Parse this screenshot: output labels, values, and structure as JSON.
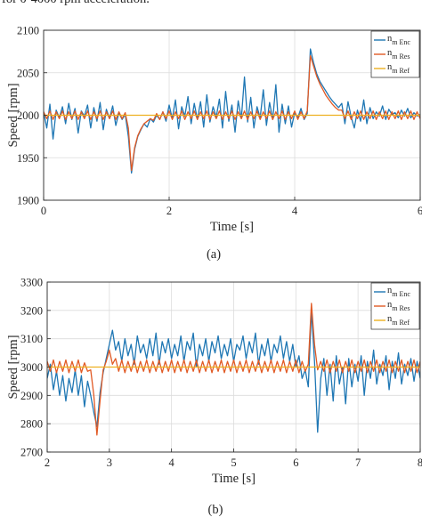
{
  "header_text": "for 0-4000 rpm acceleration.",
  "colors": {
    "enc": "#1f77b4",
    "res": "#e15a25",
    "ref": "#edb120",
    "grid": "#dcdcdc",
    "axis": "#262626"
  },
  "chart_data": [
    {
      "type": "line",
      "caption": "(a)",
      "xlabel": "Time [s]",
      "ylabel": "Speed [rpm]",
      "xlim": [
        0,
        6
      ],
      "ylim": [
        1900,
        2100
      ],
      "xticks": [
        0,
        2,
        4,
        6
      ],
      "yticks": [
        1900,
        1950,
        2000,
        2050,
        2100
      ],
      "grid": true,
      "legend_position": "top-right",
      "legend": [
        {
          "key": "enc",
          "main": "n",
          "sub": "m Enc"
        },
        {
          "key": "res",
          "main": "n",
          "sub": "m Res"
        },
        {
          "key": "ref",
          "main": "n",
          "sub": "m Ref"
        }
      ],
      "series": [
        {
          "key": "enc",
          "x": [
            0,
            0.05,
            0.1,
            0.15,
            0.2,
            0.25,
            0.3,
            0.35,
            0.4,
            0.45,
            0.5,
            0.55,
            0.6,
            0.65,
            0.7,
            0.75,
            0.8,
            0.85,
            0.9,
            0.95,
            1.0,
            1.05,
            1.1,
            1.15,
            1.2,
            1.25,
            1.3,
            1.35,
            1.4,
            1.45,
            1.5,
            1.55,
            1.6,
            1.65,
            1.7,
            1.75,
            1.8,
            1.85,
            1.9,
            1.95,
            2.0,
            2.05,
            2.1,
            2.15,
            2.2,
            2.25,
            2.3,
            2.35,
            2.4,
            2.45,
            2.5,
            2.55,
            2.6,
            2.65,
            2.7,
            2.75,
            2.8,
            2.85,
            2.9,
            2.95,
            3.0,
            3.05,
            3.1,
            3.15,
            3.2,
            3.25,
            3.3,
            3.35,
            3.4,
            3.45,
            3.5,
            3.55,
            3.6,
            3.65,
            3.7,
            3.75,
            3.8,
            3.85,
            3.9,
            3.95,
            4.0,
            4.05,
            4.1,
            4.15,
            4.2,
            4.25,
            4.3,
            4.35,
            4.4,
            4.45,
            4.5,
            4.55,
            4.6,
            4.65,
            4.7,
            4.75,
            4.8,
            4.85,
            4.9,
            4.95,
            5.0,
            5.05,
            5.1,
            5.15,
            5.2,
            5.25,
            5.3,
            5.35,
            5.4,
            5.45,
            5.5,
            5.55,
            5.6,
            5.65,
            5.7,
            5.75,
            5.8,
            5.85,
            5.9,
            5.95,
            6.0
          ],
          "y": [
            2004,
            1985,
            2013,
            1972,
            2006,
            1997,
            2010,
            1990,
            2014,
            1995,
            2008,
            1979,
            2005,
            1999,
            2012,
            1985,
            2009,
            1993,
            2015,
            1983,
            2007,
            1996,
            2011,
            1988,
            2003,
            1995,
            2001,
            1975,
            1932,
            1960,
            1975,
            1983,
            1990,
            1986,
            1996,
            1992,
            2000,
            1995,
            2004,
            1993,
            2012,
            1996,
            2018,
            1984,
            2010,
            1999,
            2022,
            1990,
            2014,
            1995,
            2016,
            1986,
            2024,
            1992,
            2010,
            1998,
            2019,
            1985,
            2028,
            1993,
            2012,
            1980,
            2017,
            1996,
            2045,
            1992,
            2021,
            1985,
            2010,
            1997,
            2030,
            1988,
            2015,
            1995,
            2036,
            1980,
            2013,
            1990,
            2011,
            1986,
            2003,
            1997,
            2008,
            1995,
            2002,
            2078,
            2062,
            2049,
            2040,
            2034,
            2028,
            2022,
            2017,
            2013,
            2009,
            2014,
            1990,
            2016,
            1998,
            1985,
            2006,
            1993,
            2018,
            1990,
            2009,
            1996,
            2004,
            1999,
            2011,
            1995,
            2007,
            2001,
            2003,
            1997,
            2006,
            1999,
            2008,
            1997,
            2003,
            1999,
            2001
          ]
        },
        {
          "key": "res",
          "x": [
            0,
            0.05,
            0.1,
            0.15,
            0.2,
            0.25,
            0.3,
            0.35,
            0.4,
            0.45,
            0.5,
            0.55,
            0.6,
            0.65,
            0.7,
            0.75,
            0.8,
            0.85,
            0.9,
            0.95,
            1.0,
            1.05,
            1.1,
            1.15,
            1.2,
            1.25,
            1.3,
            1.35,
            1.4,
            1.45,
            1.5,
            1.55,
            1.6,
            1.65,
            1.7,
            1.75,
            1.8,
            1.85,
            1.9,
            1.95,
            2.0,
            2.05,
            2.1,
            2.15,
            2.2,
            2.25,
            2.3,
            2.35,
            2.4,
            2.45,
            2.5,
            2.55,
            2.6,
            2.65,
            2.7,
            2.75,
            2.8,
            2.85,
            2.9,
            2.95,
            3.0,
            3.05,
            3.1,
            3.15,
            3.2,
            3.25,
            3.3,
            3.35,
            3.4,
            3.45,
            3.5,
            3.55,
            3.6,
            3.65,
            3.7,
            3.75,
            3.8,
            3.85,
            3.9,
            3.95,
            4.0,
            4.05,
            4.1,
            4.15,
            4.2,
            4.25,
            4.3,
            4.35,
            4.4,
            4.45,
            4.5,
            4.55,
            4.6,
            4.65,
            4.7,
            4.75,
            4.8,
            4.85,
            4.9,
            4.95,
            5.0,
            5.05,
            5.1,
            5.15,
            5.2,
            5.25,
            5.3,
            5.35,
            5.4,
            5.45,
            5.5,
            5.55,
            5.6,
            5.65,
            5.7,
            5.75,
            5.8,
            5.85,
            5.9,
            5.95,
            6.0
          ],
          "y": [
            2004,
            1996,
            2005,
            1995,
            2004,
            1996,
            2005,
            1995,
            2004,
            1996,
            2005,
            1995,
            2004,
            1996,
            2005,
            1995,
            2004,
            1996,
            2005,
            1995,
            2004,
            1996,
            2005,
            1995,
            2004,
            1996,
            2003,
            1985,
            1935,
            1962,
            1976,
            1984,
            1990,
            1993,
            1996,
            1994,
            2002,
            1995,
            2004,
            1996,
            2005,
            1995,
            2004,
            1996,
            2005,
            1995,
            2004,
            1996,
            2005,
            1995,
            2004,
            1996,
            2005,
            1995,
            2004,
            1996,
            2005,
            1995,
            2004,
            1996,
            2005,
            1995,
            2004,
            1996,
            2005,
            1995,
            2004,
            1996,
            2005,
            1995,
            2004,
            1996,
            2005,
            1995,
            2004,
            1996,
            2005,
            1995,
            2004,
            1996,
            2005,
            1995,
            2004,
            1996,
            2005,
            2070,
            2058,
            2046,
            2037,
            2030,
            2023,
            2018,
            2013,
            2009,
            2006,
            2006,
            1996,
            2005,
            1995,
            2004,
            1996,
            2005,
            1995,
            2004,
            1996,
            2005,
            1995,
            2004,
            1996,
            2005,
            1995,
            2004,
            1996,
            2005,
            1995,
            2004,
            1996,
            2005,
            1995,
            2004,
            1996
          ]
        },
        {
          "key": "ref",
          "x": [
            0,
            6
          ],
          "y": [
            2000,
            2000
          ]
        }
      ]
    },
    {
      "type": "line",
      "caption": "(b)",
      "xlabel": "Time [s]",
      "ylabel": "Speed [rpm]",
      "xlim": [
        2,
        8
      ],
      "ylim": [
        2700,
        3300
      ],
      "xticks": [
        2,
        3,
        4,
        5,
        6,
        7,
        8
      ],
      "yticks": [
        2700,
        2800,
        2900,
        3000,
        3100,
        3200,
        3300
      ],
      "grid": true,
      "legend_position": "top-right",
      "legend": [
        {
          "key": "enc",
          "main": "n",
          "sub": "m Enc"
        },
        {
          "key": "res",
          "main": "n",
          "sub": "m Res"
        },
        {
          "key": "ref",
          "main": "n",
          "sub": "m Ref"
        }
      ],
      "series": [
        {
          "key": "enc",
          "x": [
            2.0,
            2.05,
            2.1,
            2.15,
            2.2,
            2.25,
            2.3,
            2.35,
            2.4,
            2.45,
            2.5,
            2.55,
            2.6,
            2.65,
            2.7,
            2.75,
            2.8,
            2.85,
            2.9,
            2.95,
            3.0,
            3.05,
            3.1,
            3.15,
            3.2,
            3.25,
            3.3,
            3.35,
            3.4,
            3.45,
            3.5,
            3.55,
            3.6,
            3.65,
            3.7,
            3.75,
            3.8,
            3.85,
            3.9,
            3.95,
            4.0,
            4.05,
            4.1,
            4.15,
            4.2,
            4.25,
            4.3,
            4.35,
            4.4,
            4.45,
            4.5,
            4.55,
            4.6,
            4.65,
            4.7,
            4.75,
            4.8,
            4.85,
            4.9,
            4.95,
            5.0,
            5.05,
            5.1,
            5.15,
            5.2,
            5.25,
            5.3,
            5.35,
            5.4,
            5.45,
            5.5,
            5.55,
            5.6,
            5.65,
            5.7,
            5.75,
            5.8,
            5.85,
            5.9,
            5.95,
            6.0,
            6.05,
            6.1,
            6.15,
            6.2,
            6.25,
            6.3,
            6.35,
            6.4,
            6.45,
            6.5,
            6.55,
            6.6,
            6.65,
            6.7,
            6.75,
            6.8,
            6.85,
            6.9,
            6.95,
            7.0,
            7.05,
            7.1,
            7.15,
            7.2,
            7.25,
            7.3,
            7.35,
            7.4,
            7.45,
            7.5,
            7.55,
            7.6,
            7.65,
            7.7,
            7.75,
            7.8,
            7.85,
            7.9,
            7.95,
            8.0
          ],
          "y": [
            2960,
            3010,
            2920,
            2985,
            2900,
            2970,
            2880,
            2960,
            2910,
            2990,
            2900,
            2970,
            2860,
            2950,
            2900,
            2840,
            2790,
            2910,
            2980,
            3030,
            3080,
            3130,
            3060,
            3090,
            3020,
            3100,
            3040,
            3080,
            3010,
            3110,
            3050,
            3080,
            3030,
            3100,
            3040,
            3120,
            3010,
            3090,
            3050,
            3100,
            3030,
            3080,
            3040,
            3110,
            3020,
            3090,
            3060,
            3120,
            3000,
            3080,
            3040,
            3100,
            3020,
            3090,
            3050,
            3110,
            3030,
            3080,
            3040,
            3100,
            3020,
            3080,
            3060,
            3110,
            3030,
            3090,
            3050,
            3120,
            3010,
            3080,
            3040,
            3100,
            3020,
            3080,
            3050,
            3110,
            3030,
            3090,
            3020,
            3080,
            3000,
            3040,
            2960,
            2990,
            2930,
            3200,
            3020,
            2770,
            2960,
            3030,
            2900,
            3010,
            2880,
            3040,
            2940,
            3000,
            2870,
            3030,
            2930,
            3010,
            2950,
            3040,
            2900,
            3020,
            2960,
            3060,
            2940,
            3010,
            2970,
            3040,
            2920,
            3020,
            2960,
            3050,
            2940,
            3010,
            2970,
            3030,
            2950,
            3020,
            2960
          ]
        },
        {
          "key": "res",
          "x": [
            2.0,
            2.05,
            2.1,
            2.15,
            2.2,
            2.25,
            2.3,
            2.35,
            2.4,
            2.45,
            2.5,
            2.55,
            2.6,
            2.65,
            2.7,
            2.75,
            2.8,
            2.85,
            2.9,
            2.95,
            3.0,
            3.05,
            3.1,
            3.15,
            3.2,
            3.25,
            3.3,
            3.35,
            3.4,
            3.45,
            3.5,
            3.55,
            3.6,
            3.65,
            3.7,
            3.75,
            3.8,
            3.85,
            3.9,
            3.95,
            4.0,
            4.05,
            4.1,
            4.15,
            4.2,
            4.25,
            4.3,
            4.35,
            4.4,
            4.45,
            4.5,
            4.55,
            4.6,
            4.65,
            4.7,
            4.75,
            4.8,
            4.85,
            4.9,
            4.95,
            5.0,
            5.05,
            5.1,
            5.15,
            5.2,
            5.25,
            5.3,
            5.35,
            5.4,
            5.45,
            5.5,
            5.55,
            5.6,
            5.65,
            5.7,
            5.75,
            5.8,
            5.85,
            5.9,
            5.95,
            6.0,
            6.05,
            6.1,
            6.15,
            6.2,
            6.25,
            6.3,
            6.35,
            6.4,
            6.45,
            6.5,
            6.55,
            6.6,
            6.65,
            6.7,
            6.75,
            6.8,
            6.85,
            6.9,
            6.95,
            7.0,
            7.05,
            7.1,
            7.15,
            7.2,
            7.25,
            7.3,
            7.35,
            7.4,
            7.45,
            7.5,
            7.55,
            7.6,
            7.65,
            7.7,
            7.75,
            7.8,
            7.85,
            7.9,
            7.95,
            8.0
          ],
          "y": [
            3020,
            2985,
            3025,
            2980,
            3020,
            2985,
            3025,
            2980,
            3020,
            2985,
            3025,
            2980,
            3015,
            2985,
            2990,
            2900,
            2760,
            2880,
            2990,
            3020,
            3060,
            3010,
            3030,
            2985,
            3025,
            2980,
            3020,
            2985,
            3025,
            2980,
            3020,
            2985,
            3025,
            2980,
            3020,
            2985,
            3025,
            2980,
            3020,
            2985,
            3025,
            2980,
            3020,
            2985,
            3025,
            2980,
            3020,
            2985,
            3025,
            2980,
            3020,
            2985,
            3025,
            2980,
            3020,
            2985,
            3025,
            2980,
            3020,
            2985,
            3025,
            2980,
            3020,
            2985,
            3025,
            2980,
            3020,
            2985,
            3025,
            2980,
            3020,
            2985,
            3025,
            2980,
            3020,
            2985,
            3025,
            2980,
            3020,
            2985,
            3025,
            2980,
            3020,
            2985,
            3010,
            3225,
            3080,
            2990,
            3020,
            2985,
            3025,
            2980,
            3020,
            2985,
            3025,
            2980,
            3020,
            2985,
            3025,
            2980,
            3020,
            2985,
            3025,
            2980,
            3020,
            2985,
            3025,
            2980,
            3020,
            2985,
            3025,
            2980,
            3020,
            2985,
            3025,
            2980,
            3020,
            2985,
            3025,
            2980,
            3020
          ]
        },
        {
          "key": "ref",
          "x": [
            2,
            8
          ],
          "y": [
            3000,
            3000
          ]
        }
      ]
    }
  ]
}
